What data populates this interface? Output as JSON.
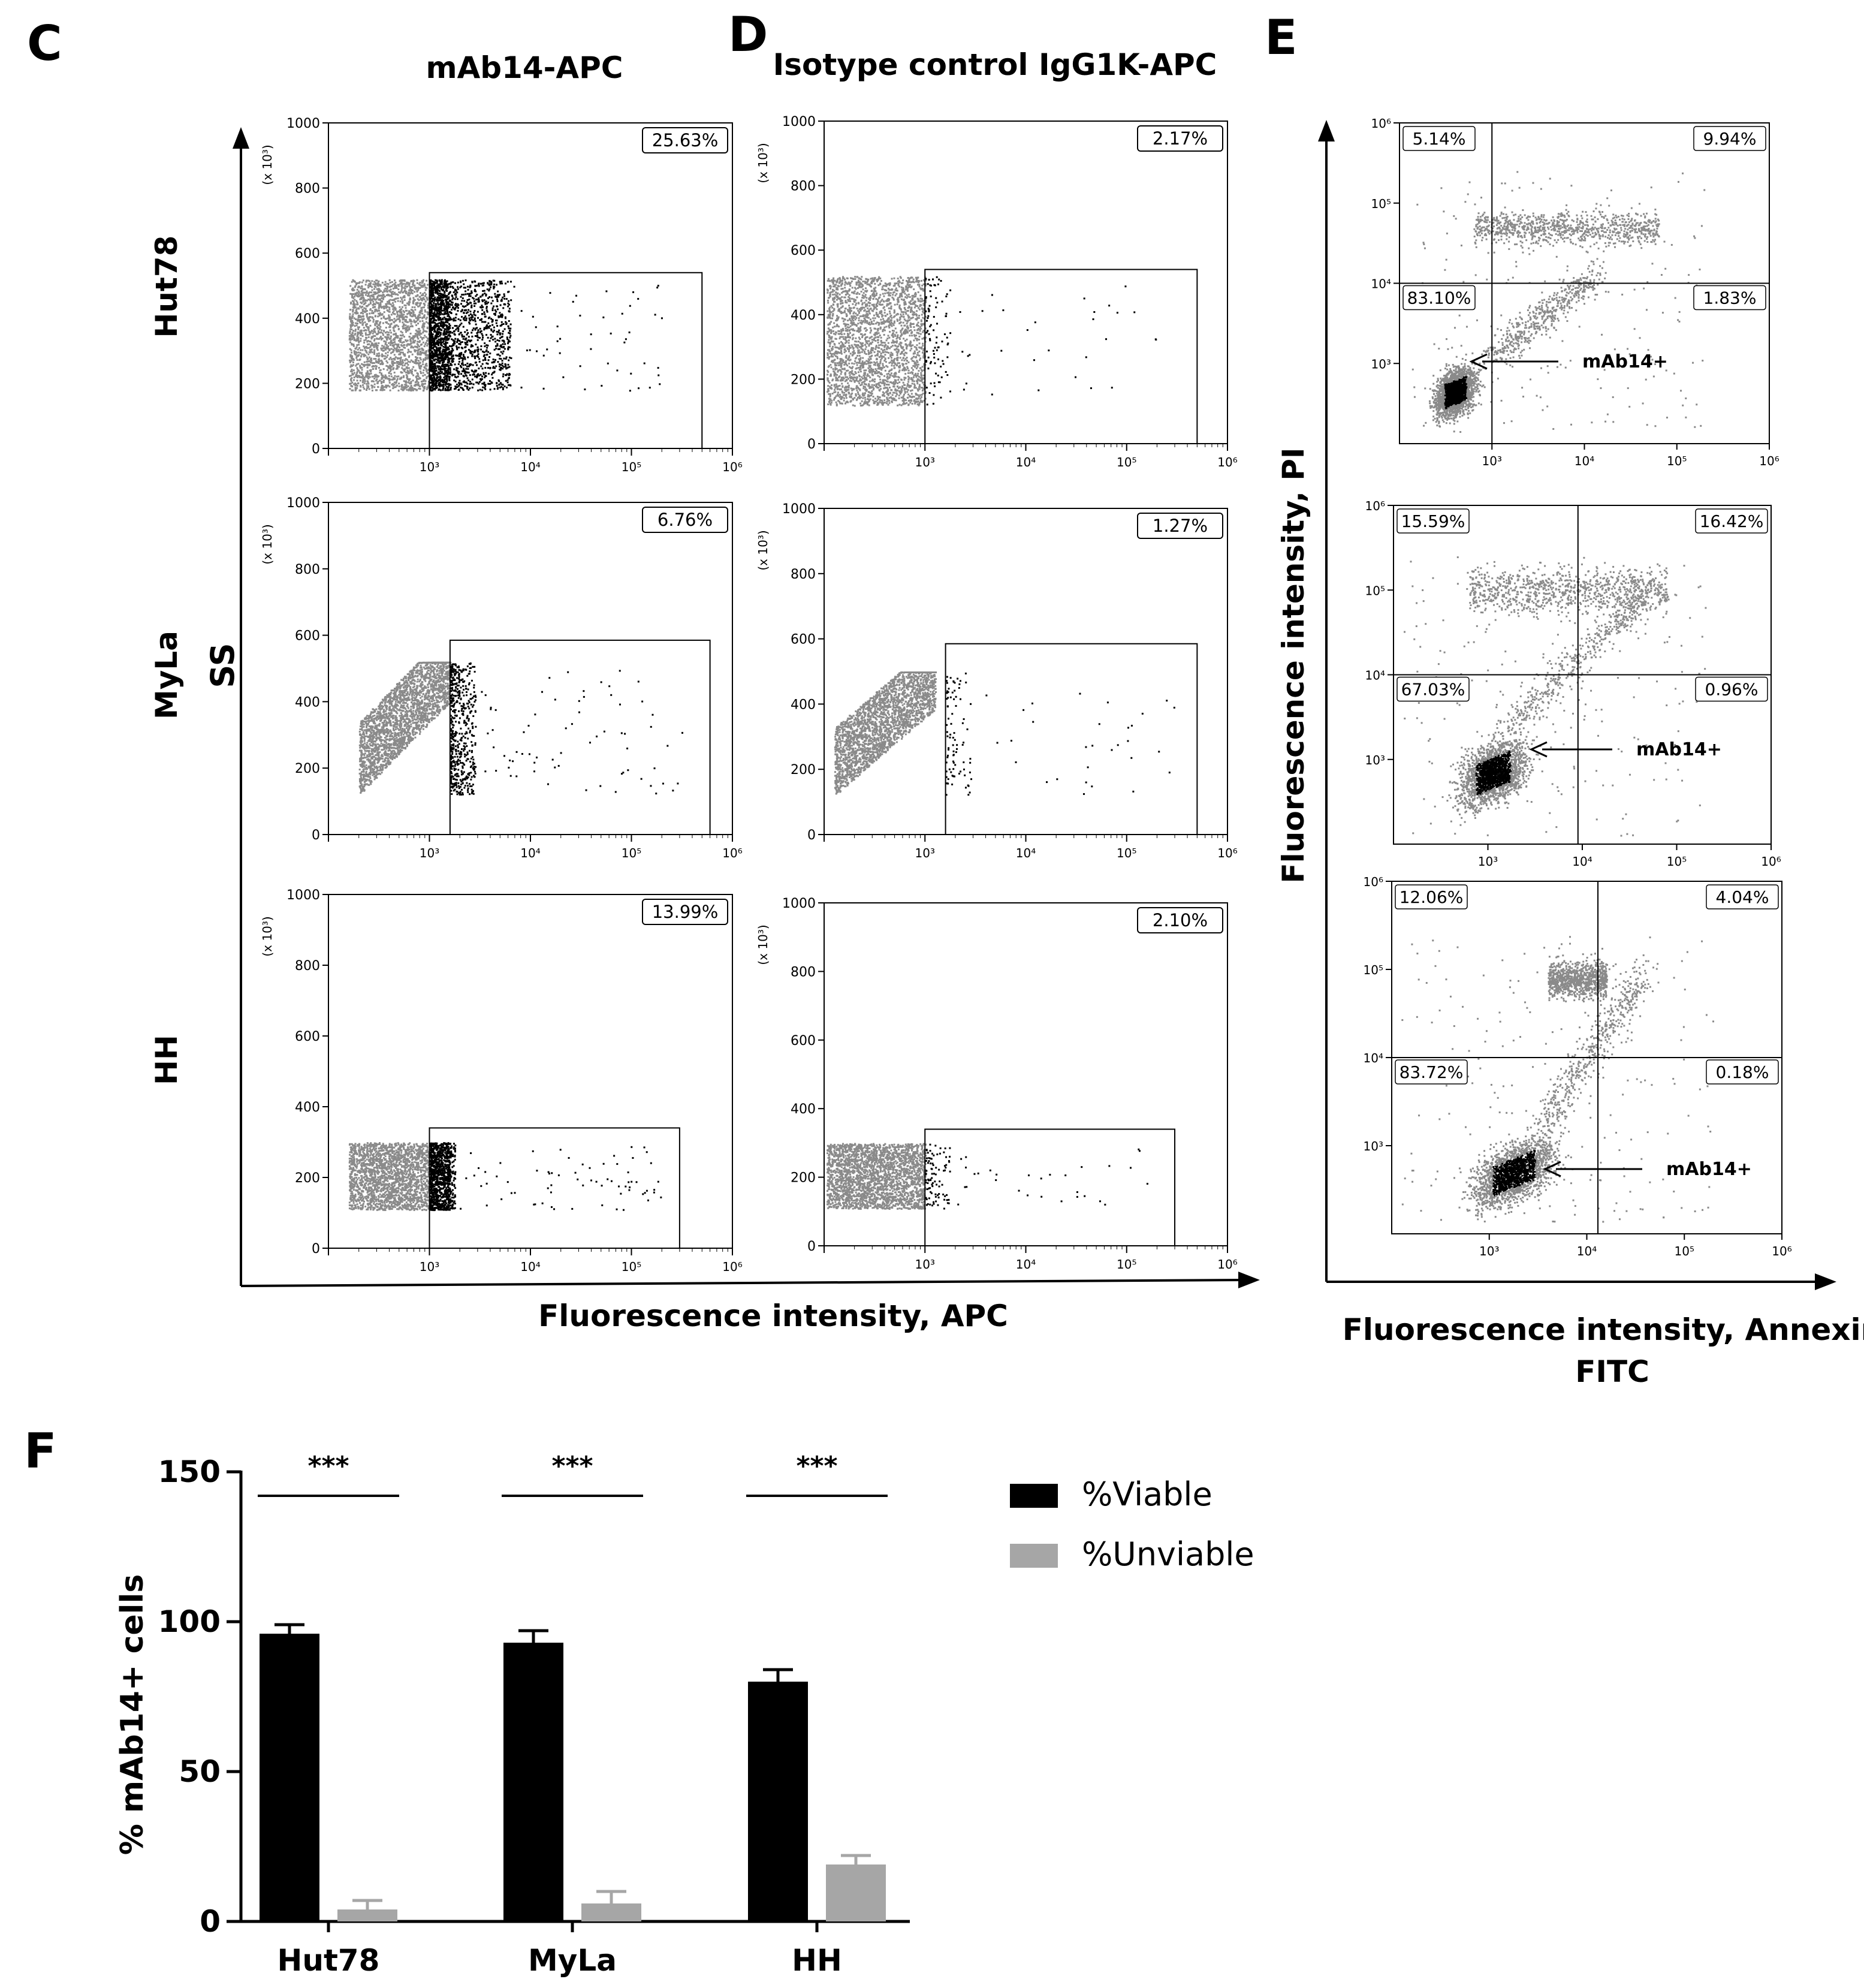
{
  "figure": {
    "panel_labels": {
      "C": "C",
      "D": "D",
      "E": "E",
      "F": "F"
    },
    "titles": {
      "C": "mAb14-APC",
      "D": "Isotype control IgG1K-APC"
    },
    "row_labels": [
      "Hut78",
      "MyLa",
      "HH"
    ],
    "ss_label": "SS",
    "xlabel_CD": "Fluorescence intensity, APC",
    "ylabel_E": "Fluorescence intensity, PI",
    "xlabel_E_lines": [
      "Fluorescence intensity, Annexin",
      "FITC"
    ],
    "marker_label": "mAb14+",
    "colors": {
      "population": "#8a8a8a",
      "gated": "#000000",
      "viable_bar": "#000000",
      "unviable_bar": "#a6a6a6"
    }
  },
  "chart_data": [
    {
      "type": "scatter",
      "panel": "C",
      "title": "mAb14-APC",
      "xlabel": "Fluorescence intensity, APC",
      "ylabel": "SS",
      "y_unit_label": "(x 10³)",
      "x_scale": "log",
      "xlim": [
        100,
        1000000
      ],
      "xticks": [
        "10³",
        "10⁴",
        "10⁵",
        "10⁶"
      ],
      "ylim": [
        0,
        1000
      ],
      "yticks": [
        "0",
        "200",
        "400",
        "600",
        "800",
        "1000"
      ],
      "subplots": [
        {
          "row": "Hut78",
          "gate_percent": "25.63%",
          "gate": {
            "x": [
              1000,
              500000
            ],
            "y": [
              0,
              540
            ]
          },
          "population": {
            "logx": [
              2.2,
              3.2
            ],
            "y": [
              180,
              520
            ],
            "tilt": 0
          }
        },
        {
          "row": "MyLa",
          "gate_percent": "6.76%",
          "gate": {
            "x": [
              1600,
              600000
            ],
            "y": [
              0,
              585
            ]
          },
          "population": {
            "logx": [
              2.3,
              3.2
            ],
            "y": [
              120,
              520
            ],
            "tilt": 1
          }
        },
        {
          "row": "HH",
          "gate_percent": "13.99%",
          "gate": {
            "x": [
              1000,
              300000
            ],
            "y": [
              0,
              340
            ]
          },
          "population": {
            "logx": [
              2.2,
              3.2
            ],
            "y": [
              110,
              300
            ],
            "tilt": 0
          }
        }
      ]
    },
    {
      "type": "scatter",
      "panel": "D",
      "title": "Isotype control IgG1K-APC",
      "xlabel": "Fluorescence intensity, APC",
      "y_unit_label": "(x 10³)",
      "x_scale": "log",
      "xlim": [
        100,
        1000000
      ],
      "xticks": [
        "10³",
        "10⁴",
        "10⁵",
        "10⁶"
      ],
      "ylim": [
        0,
        1000
      ],
      "yticks": [
        "0",
        "200",
        "400",
        "600",
        "800",
        "1000"
      ],
      "subplots": [
        {
          "row": "Hut78",
          "gate_percent": "2.17%",
          "gate": {
            "x": [
              1000,
              500000
            ],
            "y": [
              0,
              540
            ]
          },
          "population": {
            "logx": [
              2.0,
              3.0
            ],
            "y": [
              120,
              520
            ],
            "tilt": 0
          }
        },
        {
          "row": "MyLa",
          "gate_percent": "1.27%",
          "gate": {
            "x": [
              1600,
              500000
            ],
            "y": [
              0,
              585
            ]
          },
          "population": {
            "logx": [
              2.1,
              3.1
            ],
            "y": [
              120,
              500
            ],
            "tilt": 1
          }
        },
        {
          "row": "HH",
          "gate_percent": "2.10%",
          "gate": {
            "x": [
              1000,
              300000
            ],
            "y": [
              0,
              340
            ]
          },
          "population": {
            "logx": [
              2.0,
              3.0
            ],
            "y": [
              110,
              300
            ],
            "tilt": 0
          }
        }
      ]
    },
    {
      "type": "scatter",
      "panel": "E",
      "xlabel": "Fluorescence intensity, Annexin FITC",
      "ylabel": "Fluorescence intensity, PI",
      "x_scale": "log",
      "y_scale": "log",
      "xlim": [
        100,
        1000000
      ],
      "ylim": [
        100,
        1000000
      ],
      "xticks": [
        "10³",
        "10⁴",
        "10⁵",
        "10⁶"
      ],
      "yticks": [
        "10³",
        "10⁴",
        "10⁵",
        "10⁶"
      ],
      "subplots": [
        {
          "row": "Hut78",
          "quadrants": {
            "ul": "5.14%",
            "ur": "9.94%",
            "ll": "83.10%",
            "lr": "1.83%"
          },
          "divider": {
            "x": 1000,
            "y": 10000
          }
        },
        {
          "row": "MyLa",
          "quadrants": {
            "ul": "15.59%",
            "ur": "16.42%",
            "ll": "67.03%",
            "lr": "0.96%"
          },
          "divider": {
            "x": 9000,
            "y": 10000
          }
        },
        {
          "row": "HH",
          "quadrants": {
            "ul": "12.06%",
            "ur": "4.04%",
            "ll": "83.72%",
            "lr": "0.18%"
          },
          "divider": {
            "x": 13000,
            "y": 10000
          }
        }
      ]
    },
    {
      "type": "bar",
      "panel": "F",
      "categories": [
        "Hut78",
        "MyLa",
        "HH"
      ],
      "series": [
        {
          "name": "%Viable",
          "values": [
            96,
            93,
            80
          ],
          "errors": [
            3,
            4,
            4
          ]
        },
        {
          "name": "%Unviable",
          "values": [
            4,
            6,
            19
          ],
          "errors": [
            3,
            4,
            3
          ]
        }
      ],
      "ylabel": "% mAb14+ cells",
      "ylim": [
        0,
        150
      ],
      "yticks": [
        0,
        50,
        100,
        150
      ],
      "significance": [
        "***",
        "***",
        "***"
      ],
      "legend": "right"
    }
  ]
}
